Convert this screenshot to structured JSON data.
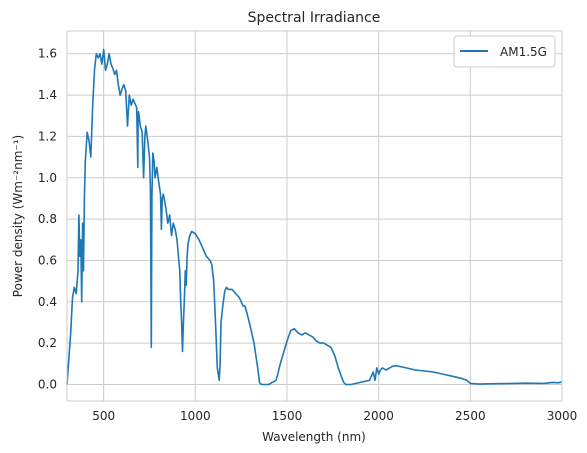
{
  "chart_data": {
    "type": "line",
    "title": "Spectral Irradiance",
    "xlabel": "Wavelength (nm)",
    "ylabel": "Power density (Wm⁻²nm⁻¹)",
    "xlim": [
      300,
      3000
    ],
    "ylim": [
      -0.08,
      1.71
    ],
    "x_ticks": [
      500,
      1000,
      1500,
      2000,
      2500,
      3000
    ],
    "y_ticks": [
      0.0,
      0.2,
      0.4,
      0.6,
      0.8,
      1.0,
      1.2,
      1.4,
      1.6
    ],
    "grid": true,
    "legend_position": "top-right",
    "colors": {
      "line": "#1f77b4",
      "grid": "#cccccc",
      "frame": "#cccccc",
      "text": "#262626"
    },
    "series": [
      {
        "name": "AM1.5G",
        "x": [
          300,
          310,
          320,
          330,
          340,
          350,
          360,
          365,
          370,
          375,
          380,
          385,
          390,
          395,
          400,
          410,
          420,
          430,
          440,
          450,
          460,
          470,
          480,
          490,
          500,
          510,
          520,
          530,
          540,
          550,
          560,
          570,
          580,
          590,
          600,
          610,
          620,
          630,
          640,
          650,
          660,
          670,
          680,
          686,
          688,
          690,
          700,
          710,
          718,
          725,
          730,
          740,
          750,
          755,
          760,
          763,
          768,
          775,
          780,
          790,
          800,
          810,
          815,
          820,
          825,
          830,
          840,
          850,
          860,
          870,
          880,
          890,
          900,
          910,
          915,
          920,
          925,
          930,
          935,
          940,
          945,
          950,
          955,
          960,
          970,
          980,
          1000,
          1020,
          1040,
          1060,
          1080,
          1090,
          1100,
          1110,
          1120,
          1130,
          1135,
          1140,
          1150,
          1160,
          1170,
          1180,
          1200,
          1220,
          1240,
          1260,
          1270,
          1280,
          1300,
          1320,
          1340,
          1350,
          1360,
          1370,
          1380,
          1400,
          1420,
          1440,
          1450,
          1460,
          1480,
          1500,
          1520,
          1540,
          1560,
          1580,
          1600,
          1620,
          1640,
          1660,
          1680,
          1700,
          1720,
          1740,
          1760,
          1780,
          1800,
          1810,
          1820,
          1850,
          1900,
          1950,
          1970,
          1980,
          1990,
          2000,
          2010,
          2020,
          2040,
          2060,
          2080,
          2100,
          2150,
          2200,
          2250,
          2300,
          2350,
          2400,
          2450,
          2480,
          2500,
          2550,
          2600,
          2700,
          2800,
          2900,
          2950,
          2980,
          3000
        ],
        "values": [
          0.0,
          0.12,
          0.25,
          0.42,
          0.47,
          0.44,
          0.55,
          0.82,
          0.62,
          0.7,
          0.4,
          0.78,
          0.55,
          0.9,
          1.08,
          1.22,
          1.18,
          1.1,
          1.35,
          1.52,
          1.6,
          1.58,
          1.6,
          1.55,
          1.62,
          1.52,
          1.55,
          1.6,
          1.55,
          1.53,
          1.5,
          1.52,
          1.45,
          1.4,
          1.43,
          1.45,
          1.42,
          1.25,
          1.4,
          1.35,
          1.38,
          1.36,
          1.34,
          1.05,
          1.3,
          1.32,
          1.25,
          1.22,
          1.0,
          1.2,
          1.25,
          1.18,
          1.1,
          0.95,
          0.18,
          0.9,
          1.12,
          1.08,
          1.0,
          1.05,
          0.98,
          0.92,
          0.75,
          0.9,
          0.92,
          0.9,
          0.85,
          0.78,
          0.82,
          0.72,
          0.78,
          0.75,
          0.7,
          0.6,
          0.55,
          0.4,
          0.3,
          0.16,
          0.3,
          0.4,
          0.55,
          0.48,
          0.62,
          0.68,
          0.72,
          0.74,
          0.73,
          0.7,
          0.66,
          0.62,
          0.6,
          0.58,
          0.5,
          0.3,
          0.08,
          0.02,
          0.1,
          0.3,
          0.38,
          0.45,
          0.47,
          0.46,
          0.46,
          0.44,
          0.42,
          0.38,
          0.38,
          0.35,
          0.28,
          0.2,
          0.08,
          0.01,
          0.0,
          0.0,
          0.0,
          0.0,
          0.01,
          0.02,
          0.05,
          0.09,
          0.15,
          0.21,
          0.26,
          0.27,
          0.25,
          0.24,
          0.25,
          0.24,
          0.23,
          0.21,
          0.2,
          0.2,
          0.19,
          0.18,
          0.14,
          0.08,
          0.03,
          0.01,
          0.0,
          0.0,
          0.01,
          0.02,
          0.06,
          0.02,
          0.08,
          0.05,
          0.07,
          0.08,
          0.07,
          0.08,
          0.09,
          0.09,
          0.08,
          0.07,
          0.065,
          0.06,
          0.05,
          0.04,
          0.03,
          0.02,
          0.005,
          0.002,
          0.003,
          0.004,
          0.006,
          0.005,
          0.01,
          0.008,
          0.012
        ]
      }
    ]
  }
}
